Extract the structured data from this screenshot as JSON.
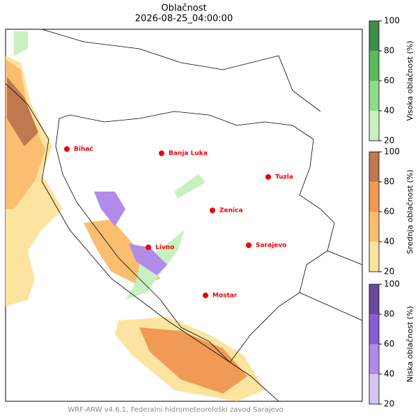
{
  "title": "Oblačnost",
  "subtitle": "2026-08-25_04:00:00",
  "footer": "WRF-ARW v4.6.1, Federalni hidrometeorološki zavod Sarajevo",
  "cities": [
    "Bihać",
    "Banja Luka",
    "Tuzla",
    "Zenica",
    "Sarajevo",
    "Livno",
    "Mostar"
  ],
  "colorbars": [
    {
      "label": "Visoka oblačnost (%)",
      "ticks": [
        20,
        40,
        60,
        80,
        100
      ],
      "colors": [
        "#c8f0c0",
        "#90da8a",
        "#5cb85c",
        "#3f8f4a"
      ]
    },
    {
      "label": "Srednja oblačnost (%)",
      "ticks": [
        20,
        40,
        60,
        80,
        100
      ],
      "colors": [
        "#fde3a0",
        "#fbbd6f",
        "#f09a55",
        "#c07850"
      ]
    },
    {
      "label": "Niska oblačnost (%)",
      "ticks": [
        20,
        40,
        60,
        80,
        100
      ],
      "colors": [
        "#d6c4f5",
        "#b08ce8",
        "#8a5cd2",
        "#6a4a9e"
      ]
    }
  ]
}
